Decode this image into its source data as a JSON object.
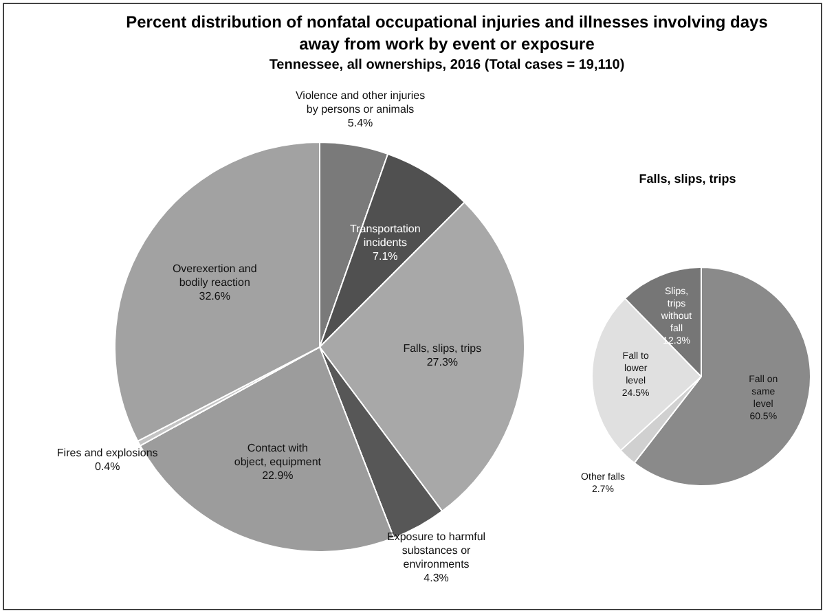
{
  "chart_data": [
    {
      "type": "pie",
      "title": "Percent distribution of nonfatal occupational injuries and illnesses involving days away from work by event or exposure",
      "subtitle": "Tennessee, all ownerships, 2016 (Total cases = 19,110)",
      "categories": [
        "Violence and other injuries by persons or animals",
        "Transportation incidents",
        "Falls, slips, trips",
        "Exposure to harmful substances or environments",
        "Contact with object, equipment",
        "Fires and explosions",
        "Overexertion and bodily reaction"
      ],
      "values": [
        5.4,
        7.1,
        27.3,
        4.3,
        22.9,
        0.4,
        32.6
      ],
      "value_labels": [
        "5.4%",
        "7.1%",
        "27.3%",
        "4.3%",
        "22.9%",
        "0.4%",
        "32.6%"
      ],
      "colors": [
        "#7a7a7a",
        "#505050",
        "#a8a8a8",
        "#575757",
        "#9c9c9c",
        "#c4c4c4",
        "#a2a2a2"
      ],
      "legend": false
    },
    {
      "type": "pie",
      "title": "Falls, slips, trips",
      "categories": [
        "Fall on same level",
        "Other falls",
        "Fall to lower level",
        "Slips, trips without fall"
      ],
      "values": [
        60.5,
        2.7,
        24.5,
        12.3
      ],
      "value_labels": [
        "60.5%",
        "2.7%",
        "24.5%",
        "12.3%"
      ],
      "colors": [
        "#8a8a8a",
        "#d0d0d0",
        "#e0e0e0",
        "#767676"
      ],
      "legend": false
    }
  ]
}
